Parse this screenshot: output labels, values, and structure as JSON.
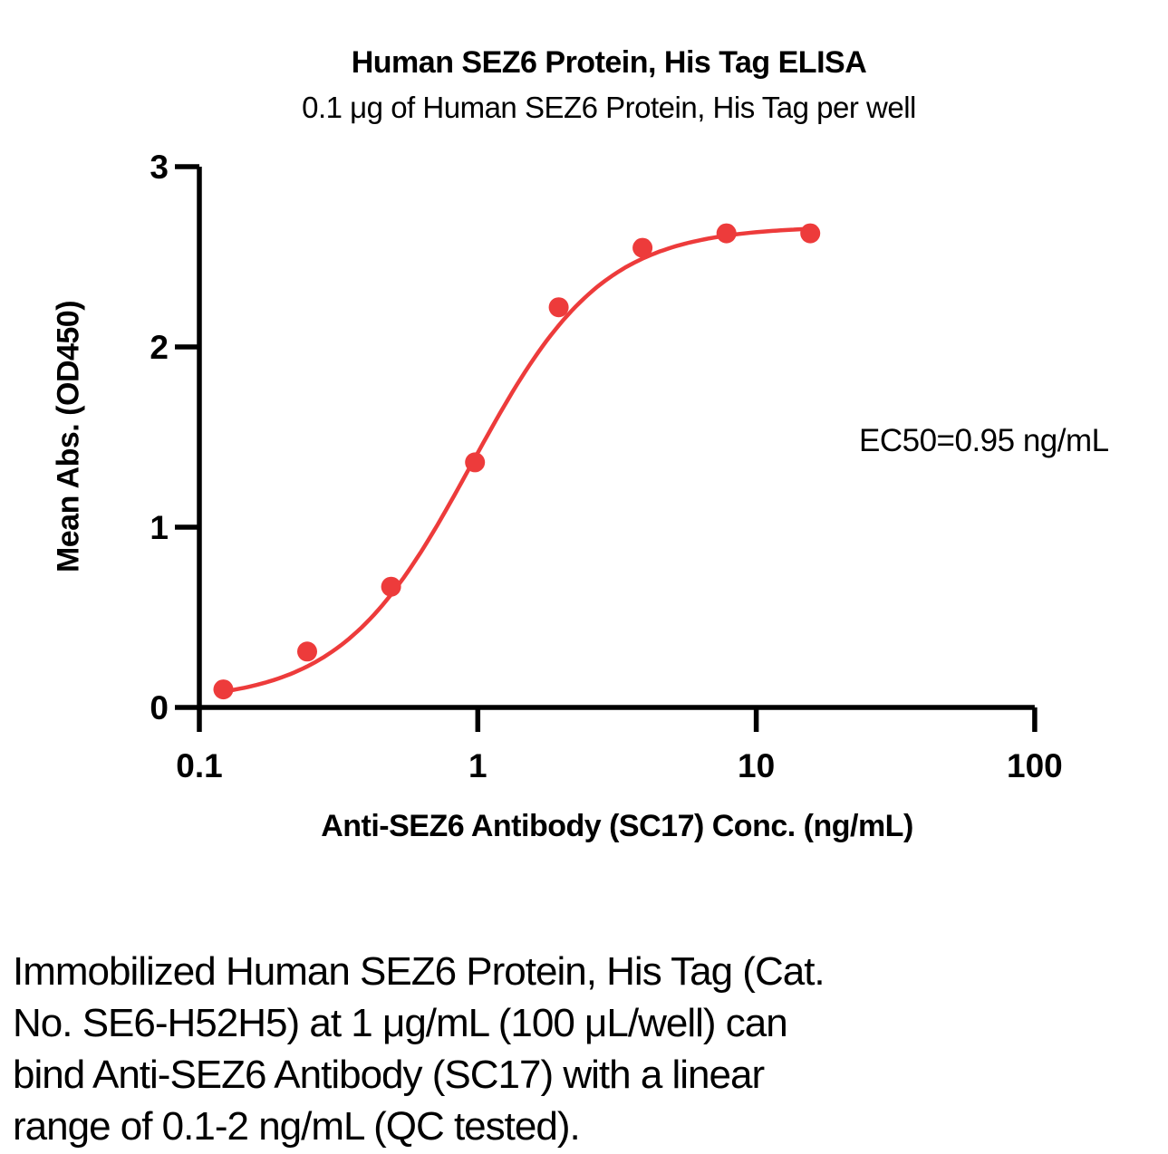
{
  "figure": {
    "caption_lines": [
      "Immobilized Human SEZ6 Protein, His Tag (Cat.",
      "No. SE6-H52H5) at 1 μg/mL (100 μL/well) can",
      "bind Anti-SEZ6 Antibody (SC17) with a linear",
      "range of 0.1-2 ng/mL (QC tested)."
    ]
  },
  "chart_data": {
    "type": "scatter",
    "title": "Human SEZ6 Protein, His Tag ELISA",
    "subtitle": "0.1 μg of Human SEZ6 Protein, His Tag per well",
    "xlabel": "Anti-SEZ6 Antibody (SC17) Conc. (ng/mL)",
    "ylabel": "Mean Abs. (OD450)",
    "annotation": "EC50=0.95 ng/mL",
    "x_scale": "log10",
    "xlim": [
      0.1,
      100
    ],
    "ylim": [
      0,
      3
    ],
    "grid": false,
    "legend": "none",
    "x_ticks": {
      "values": [
        0.1,
        1,
        10,
        100
      ],
      "labels": [
        "0.1",
        "1",
        "10",
        "100"
      ]
    },
    "y_ticks": {
      "values": [
        0,
        1,
        2,
        3
      ],
      "labels": [
        "0",
        "1",
        "2",
        "3"
      ]
    },
    "series": [
      {
        "x": [
          0.122,
          0.244,
          0.488,
          0.977,
          1.953,
          3.906,
          7.813,
          15.625
        ],
        "y": [
          0.1,
          0.31,
          0.67,
          1.36,
          2.22,
          2.55,
          2.63,
          2.63
        ],
        "color": "#ED3B3B",
        "marker": "circle",
        "fit": {
          "model": "4PL",
          "bottom": 0.03,
          "top": 2.67,
          "ec50": 0.95,
          "hill": 1.85
        }
      }
    ]
  },
  "colors": {
    "series": "#ED3B3B",
    "axis": "#000000",
    "text": "#000000"
  }
}
